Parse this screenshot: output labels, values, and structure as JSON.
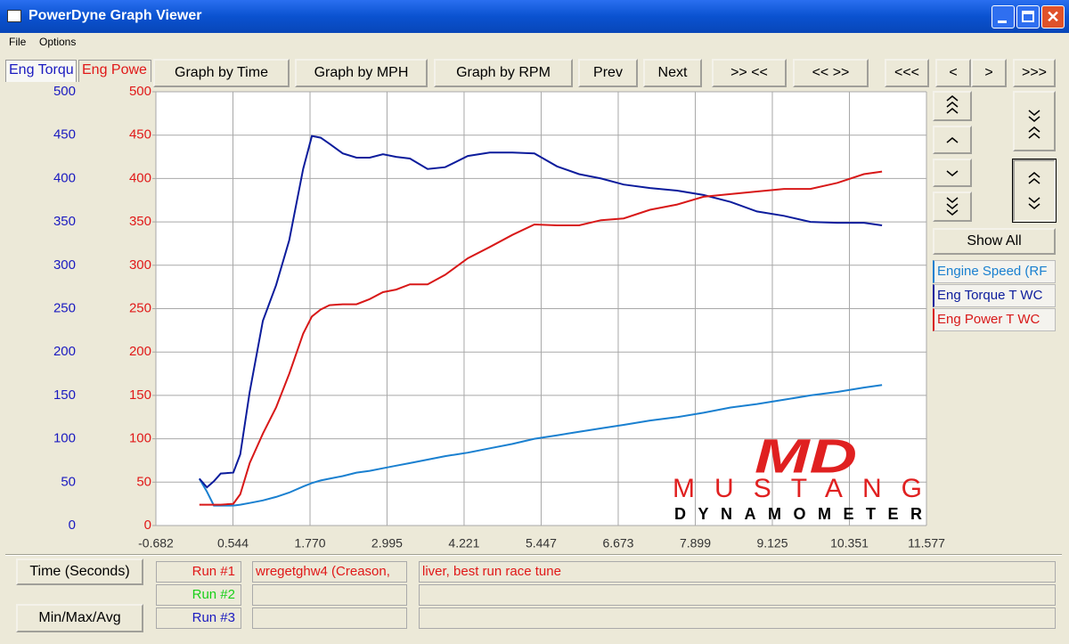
{
  "window": {
    "title": "PowerDyne Graph Viewer",
    "menu": [
      "File",
      "Options"
    ]
  },
  "tabs": [
    {
      "label": "Eng Torqu",
      "color": "#1a1ac0"
    },
    {
      "label": "Eng Powe",
      "color": "#e01818"
    }
  ],
  "toolbar": [
    "Graph by Time",
    "Graph by MPH",
    "Graph by RPM",
    "Prev",
    "Next",
    ">> <<",
    "<< >>",
    "<<<",
    "<",
    ">",
    ">>>"
  ],
  "side": {
    "show_all": "Show All"
  },
  "chart_data": {
    "type": "line",
    "x_label": "Time (Seconds)",
    "x": [
      0.01,
      0.13,
      0.24,
      0.35,
      0.55,
      0.66,
      0.81,
      1.02,
      1.23,
      1.44,
      1.66,
      1.8,
      1.94,
      2.08,
      2.29,
      2.51,
      2.72,
      2.93,
      3.14,
      3.36,
      3.64,
      3.92,
      4.28,
      4.63,
      4.99,
      5.34,
      5.7,
      6.05,
      6.4,
      6.76,
      7.18,
      7.61,
      8.03,
      8.46,
      8.88,
      9.31,
      9.73,
      10.16,
      10.58,
      10.87
    ],
    "series": [
      {
        "name": "Engine Speed (RF",
        "color": "#1a80d0",
        "values": [
          54,
          39,
          23,
          23,
          23,
          24,
          26,
          29,
          33,
          38,
          45,
          49,
          52,
          54,
          57,
          61,
          63,
          66,
          69,
          72,
          76,
          80,
          84,
          89,
          94,
          100,
          104,
          108,
          112,
          116,
          121,
          125,
          130,
          136,
          140,
          145,
          150,
          154,
          159,
          162
        ]
      },
      {
        "name": "Eng Torque T WC",
        "color": "#0c1c9c",
        "values": [
          54,
          44,
          51,
          60,
          61,
          82,
          154,
          236,
          277,
          329,
          411,
          449,
          447,
          440,
          429,
          424,
          424,
          428,
          425,
          423,
          411,
          413,
          426,
          430,
          430,
          429,
          414,
          405,
          400,
          393,
          389,
          386,
          381,
          373,
          362,
          357,
          350,
          349,
          349,
          346
        ]
      },
      {
        "name": "Eng Power T WC",
        "color": "#d81818",
        "axis": "y2",
        "values": [
          24,
          24,
          24,
          24,
          25,
          36,
          72,
          106,
          136,
          175,
          221,
          241,
          249,
          254,
          255,
          255,
          261,
          269,
          272,
          278,
          278,
          289,
          308,
          321,
          335,
          347,
          346,
          346,
          352,
          354,
          364,
          370,
          379,
          382,
          385,
          388,
          388,
          395,
          405,
          408
        ]
      }
    ],
    "xlim": [
      -0.682,
      11.577
    ],
    "xticks": [
      -0.682,
      0.544,
      {
        "value": 1.77,
        "label": "1.770"
      },
      2.995,
      4.221,
      5.447,
      6.673,
      7.899,
      9.125,
      10.351,
      11.577
    ],
    "ylim": [
      0,
      500
    ],
    "yticks": [
      0,
      50,
      100,
      150,
      200,
      250,
      300,
      350,
      400,
      450,
      500
    ],
    "ytick_color": "#1a1ac0",
    "y2lim": [
      0,
      500
    ],
    "y2ticks": [
      0,
      50,
      100,
      150,
      200,
      250,
      300,
      350,
      400,
      450,
      500
    ],
    "y2tick_color": "#e01818",
    "grid": true
  },
  "logo": {
    "mark": "MD",
    "name": "MUSTANG",
    "sub": "DYNAMOMETER"
  },
  "bottom": {
    "min_max_avg": "Min/Max/Avg",
    "runs": [
      {
        "label": "Run #1",
        "color": "#e01818",
        "description": [
          "wregetghw4 (Creason,",
          "liver, best run race tune"
        ]
      },
      {
        "label": "Run #2",
        "color": "#18d018",
        "description": []
      },
      {
        "label": "Run #3",
        "color": "#1a1ac0",
        "description": []
      }
    ]
  }
}
